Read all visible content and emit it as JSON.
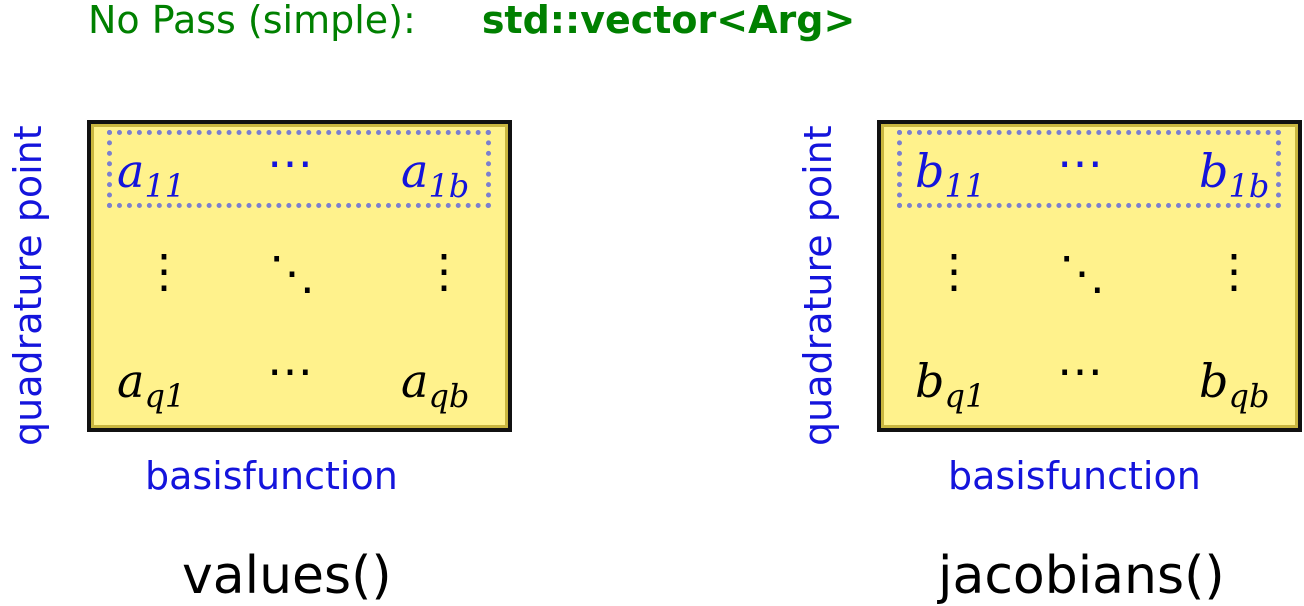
{
  "title": {
    "label": "No Pass (simple):",
    "code": "std::vector<Arg>"
  },
  "left": {
    "ylabel": "quadrature point",
    "xlabel": "basisfunction",
    "function": "values()",
    "base": "a",
    "sub_11": "11",
    "sub_1b": "1b",
    "sub_q1": "q1",
    "sub_qb": "qb"
  },
  "right": {
    "ylabel": "quadrature point",
    "xlabel": "basisfunction",
    "function": "jacobians()",
    "base": "b",
    "sub_11": "11",
    "sub_1b": "1b",
    "sub_q1": "q1",
    "sub_qb": "qb"
  },
  "symbols": {
    "hdots": "⋯",
    "vdots": "⋮",
    "ddots": "⋱"
  },
  "colors": {
    "title": "#008000",
    "highlight_text": "#1414dc",
    "panel_fill": "#fff28c"
  }
}
